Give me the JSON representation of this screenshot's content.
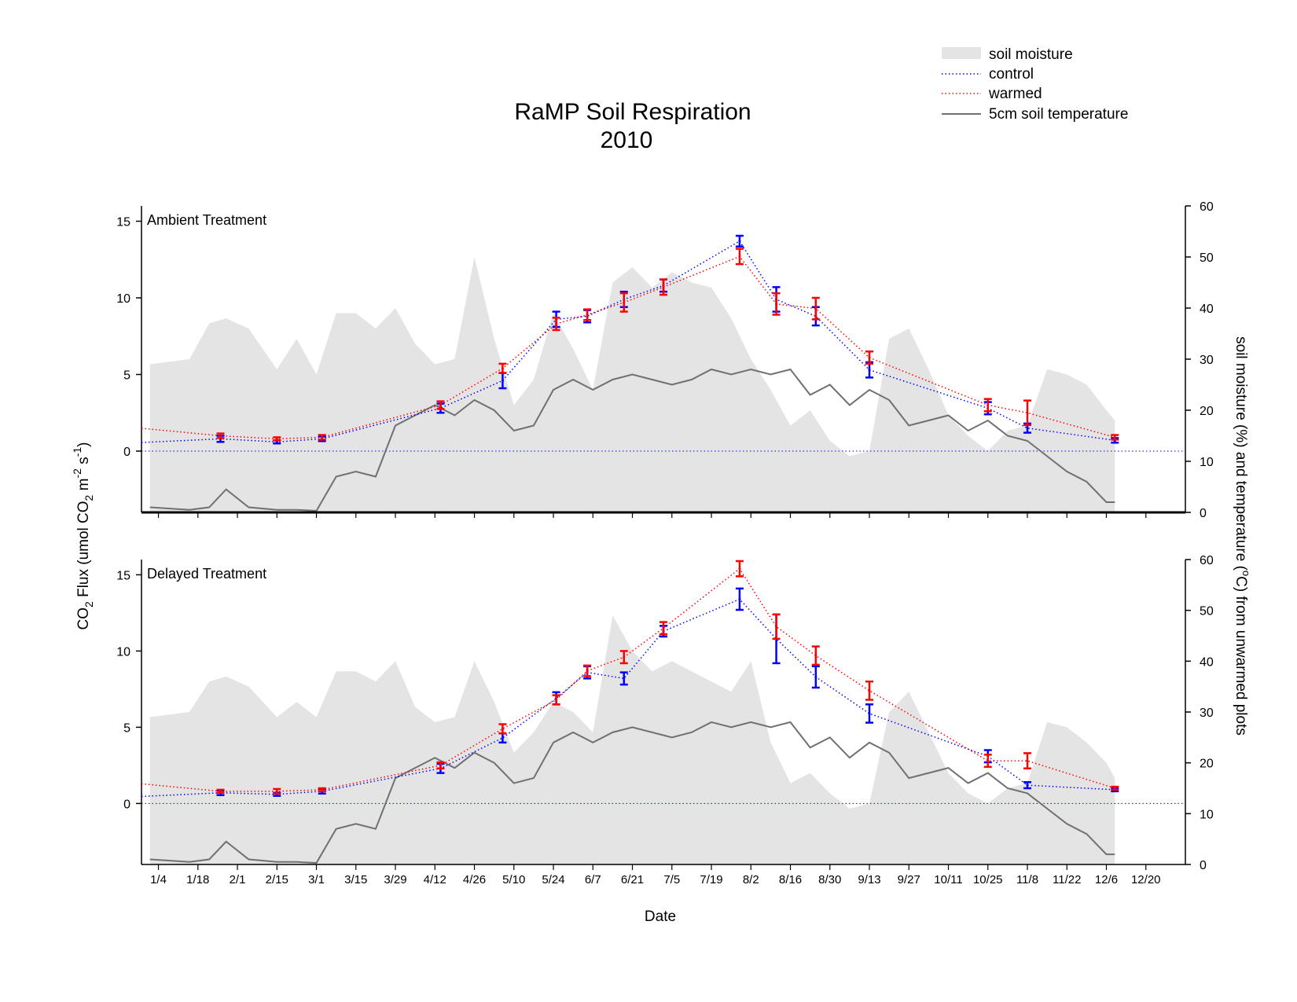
{
  "title_line1": "RaMP Soil Respiration",
  "title_line2": "2010",
  "xlabel": "Date",
  "ylabel_left": "CO2 Flux (umol CO2 m-2 s-1)",
  "ylabel_right": "soil moisture (%) and temperature (°C) from unwarmed plots",
  "legend": {
    "soil_moisture": "soil moisture",
    "control": "control",
    "warmed": "warmed",
    "temperature": "5cm soil temperature"
  },
  "colors": {
    "control": "#0000ff",
    "warmed": "#ff0000",
    "moisture": "#e4e4e4",
    "temperature": "#707070"
  },
  "chart_data": [
    {
      "type": "line",
      "panel": "Ambient Treatment",
      "title": "Ambient Treatment",
      "xlabel": "Date",
      "x_ticks": [
        "1/4",
        "1/18",
        "2/1",
        "2/15",
        "3/1",
        "3/15",
        "3/29",
        "4/12",
        "4/26",
        "5/10",
        "5/24",
        "6/7",
        "6/21",
        "7/5",
        "7/19",
        "8/2",
        "8/16",
        "8/30",
        "9/13",
        "9/27",
        "10/11",
        "10/25",
        "11/8",
        "11/22",
        "12/6",
        "12/20"
      ],
      "x_range": [
        "12/30",
        "12/30"
      ],
      "y_left": {
        "label": "CO2 Flux (umol CO2 m-2 s-1)",
        "range": [
          -4,
          16
        ],
        "ticks": [
          0,
          5,
          10,
          15
        ]
      },
      "y_right": {
        "label": "soil moisture (%) and temperature (°C)",
        "range": [
          0,
          60
        ],
        "ticks": [
          0,
          10,
          20,
          30,
          40,
          50,
          60
        ]
      },
      "series": [
        {
          "name": "control",
          "x": [
            "1/26",
            "2/15",
            "3/3",
            "4/14",
            "5/6",
            "5/25",
            "6/5",
            "6/18",
            "7/2",
            "7/29",
            "8/11",
            "8/25",
            "9/13",
            "10/25",
            "11/8",
            "12/9"
          ],
          "values": [
            0.8,
            0.6,
            0.8,
            2.8,
            4.6,
            8.6,
            8.8,
            9.9,
            10.8,
            13.7,
            9.9,
            8.8,
            5.3,
            2.8,
            1.5,
            0.7
          ],
          "error": [
            0.2,
            0.1,
            0.15,
            0.3,
            0.5,
            0.5,
            0.4,
            0.5,
            0.4,
            0.35,
            0.8,
            0.6,
            0.5,
            0.4,
            0.3,
            0.15
          ]
        },
        {
          "name": "warmed",
          "x": [
            "1/26",
            "2/15",
            "3/3",
            "4/14",
            "5/6",
            "5/25",
            "6/5",
            "6/18",
            "7/2",
            "7/29",
            "8/11",
            "8/25",
            "9/13",
            "10/25",
            "11/8",
            "12/9"
          ],
          "values": [
            1.0,
            0.8,
            0.9,
            3.0,
            5.4,
            8.3,
            8.9,
            9.7,
            10.7,
            12.7,
            9.6,
            9.3,
            6.1,
            3.0,
            2.5,
            0.9
          ],
          "error": [
            0.15,
            0.1,
            0.15,
            0.25,
            0.3,
            0.4,
            0.35,
            0.6,
            0.5,
            0.5,
            0.7,
            0.7,
            0.4,
            0.4,
            0.8,
            0.15
          ]
        },
        {
          "name": "soil moisture",
          "axis": "right",
          "unit": "%",
          "x": [
            "1/1",
            "1/15",
            "1/22",
            "1/28",
            "2/5",
            "2/15",
            "2/22",
            "3/1",
            "3/8",
            "3/15",
            "3/22",
            "3/29",
            "4/5",
            "4/12",
            "4/19",
            "4/26",
            "5/3",
            "5/10",
            "5/17",
            "5/24",
            "5/31",
            "6/7",
            "6/14",
            "6/21",
            "6/28",
            "7/5",
            "7/12",
            "7/19",
            "7/26",
            "8/2",
            "8/9",
            "8/16",
            "8/23",
            "8/30",
            "9/6",
            "9/13",
            "9/20",
            "9/27",
            "10/4",
            "10/11",
            "10/18",
            "10/25",
            "11/1",
            "11/8",
            "11/15",
            "11/22",
            "11/29",
            "12/6",
            "12/9"
          ],
          "values": [
            29,
            30,
            37,
            38,
            36,
            28,
            34,
            27,
            39,
            39,
            36,
            40,
            33,
            29,
            30,
            50,
            34,
            21,
            26,
            39,
            32,
            24,
            45,
            48,
            44,
            47,
            45,
            44,
            38,
            30,
            24,
            17,
            20,
            14,
            11,
            12,
            34,
            36,
            28,
            19,
            15,
            12,
            16,
            17,
            28,
            27,
            25,
            20,
            18
          ]
        },
        {
          "name": "5cm soil temperature",
          "axis": "right",
          "unit": "°C",
          "x": [
            "1/1",
            "1/15",
            "1/22",
            "1/28",
            "2/5",
            "2/15",
            "2/22",
            "3/1",
            "3/8",
            "3/15",
            "3/22",
            "3/29",
            "4/5",
            "4/12",
            "4/19",
            "4/26",
            "5/3",
            "5/10",
            "5/17",
            "5/24",
            "5/31",
            "6/7",
            "6/14",
            "6/21",
            "6/28",
            "7/5",
            "7/12",
            "7/19",
            "7/26",
            "8/2",
            "8/9",
            "8/16",
            "8/23",
            "8/30",
            "9/6",
            "9/13",
            "9/20",
            "9/27",
            "10/4",
            "10/11",
            "10/18",
            "10/25",
            "11/1",
            "11/8",
            "11/15",
            "11/22",
            "11/29",
            "12/6",
            "12/9"
          ],
          "values": [
            1,
            0.5,
            1,
            4.5,
            1,
            0.5,
            0.5,
            0.3,
            7,
            8,
            7,
            17,
            19,
            21,
            19,
            22,
            20,
            16,
            17,
            24,
            26,
            24,
            26,
            27,
            26,
            25,
            26,
            28,
            27,
            28,
            27,
            28,
            23,
            25,
            21,
            24,
            22,
            17,
            18,
            19,
            16,
            18,
            15,
            14,
            11,
            8,
            6,
            2,
            2
          ]
        }
      ]
    },
    {
      "type": "line",
      "panel": "Delayed Treatment",
      "title": "Delayed Treatment",
      "xlabel": "Date",
      "x_ticks": [
        "1/4",
        "1/18",
        "2/1",
        "2/15",
        "3/1",
        "3/15",
        "3/29",
        "4/12",
        "4/26",
        "5/10",
        "5/24",
        "6/7",
        "6/21",
        "7/5",
        "7/19",
        "8/2",
        "8/16",
        "8/30",
        "9/13",
        "9/27",
        "10/11",
        "10/25",
        "11/8",
        "11/22",
        "12/6",
        "12/20"
      ],
      "x_range": [
        "12/30",
        "12/30"
      ],
      "y_left": {
        "label": "CO2 Flux (umol CO2 m-2 s-1)",
        "range": [
          -4,
          16
        ],
        "ticks": [
          0,
          5,
          10,
          15
        ]
      },
      "y_right": {
        "label": "soil moisture (%) and temperature (°C)",
        "range": [
          0,
          60
        ],
        "ticks": [
          0,
          10,
          20,
          30,
          40,
          50,
          60
        ]
      },
      "series": [
        {
          "name": "control",
          "x": [
            "1/26",
            "2/15",
            "3/3",
            "4/14",
            "5/6",
            "5/25",
            "6/5",
            "6/18",
            "7/2",
            "7/29",
            "8/11",
            "8/25",
            "9/13",
            "10/25",
            "11/8",
            "12/9"
          ],
          "values": [
            0.7,
            0.6,
            0.8,
            2.3,
            4.3,
            6.9,
            8.6,
            8.2,
            11.3,
            13.4,
            10.8,
            8.3,
            5.9,
            3.1,
            1.2,
            0.9
          ],
          "error": [
            0.15,
            0.1,
            0.15,
            0.3,
            0.3,
            0.4,
            0.4,
            0.4,
            0.35,
            0.7,
            1.6,
            0.7,
            0.6,
            0.4,
            0.2,
            0.1
          ]
        },
        {
          "name": "warmed",
          "x": [
            "1/26",
            "2/15",
            "3/3",
            "4/14",
            "5/6",
            "5/25",
            "6/5",
            "6/18",
            "7/2",
            "7/29",
            "8/11",
            "8/25",
            "9/13",
            "10/25",
            "11/8",
            "12/9"
          ],
          "values": [
            0.8,
            0.8,
            0.9,
            2.5,
            4.9,
            6.8,
            8.7,
            9.6,
            11.5,
            15.4,
            11.6,
            9.7,
            7.4,
            2.8,
            2.8,
            1.0
          ],
          "error": [
            0.1,
            0.15,
            0.1,
            0.2,
            0.3,
            0.3,
            0.35,
            0.4,
            0.4,
            0.5,
            0.8,
            0.6,
            0.6,
            0.4,
            0.5,
            0.1
          ]
        },
        {
          "name": "soil moisture",
          "axis": "right",
          "unit": "%",
          "x": [
            "1/1",
            "1/15",
            "1/22",
            "1/28",
            "2/5",
            "2/15",
            "2/22",
            "3/1",
            "3/8",
            "3/15",
            "3/22",
            "3/29",
            "4/5",
            "4/12",
            "4/19",
            "4/26",
            "5/3",
            "5/10",
            "5/17",
            "5/24",
            "5/31",
            "6/7",
            "6/14",
            "6/21",
            "6/28",
            "7/5",
            "7/12",
            "7/19",
            "7/26",
            "8/2",
            "8/9",
            "8/16",
            "8/23",
            "8/30",
            "9/6",
            "9/13",
            "9/20",
            "9/27",
            "10/4",
            "10/11",
            "10/18",
            "10/25",
            "11/1",
            "11/8",
            "11/15",
            "11/22",
            "11/29",
            "12/6",
            "12/9"
          ],
          "values": [
            29,
            30,
            36,
            37,
            35,
            29,
            32,
            29,
            38,
            38,
            36,
            40,
            31,
            28,
            29,
            40,
            32,
            22,
            26,
            32,
            30,
            26,
            49,
            42,
            38,
            40,
            38,
            36,
            34,
            40,
            24,
            16,
            18,
            14,
            11,
            12,
            30,
            34,
            26,
            18,
            14,
            12,
            15,
            16,
            28,
            27,
            24,
            20,
            17
          ]
        },
        {
          "name": "5cm soil temperature",
          "axis": "right",
          "unit": "°C",
          "x": [
            "1/1",
            "1/15",
            "1/22",
            "1/28",
            "2/5",
            "2/15",
            "2/22",
            "3/1",
            "3/8",
            "3/15",
            "3/22",
            "3/29",
            "4/5",
            "4/12",
            "4/19",
            "4/26",
            "5/3",
            "5/10",
            "5/17",
            "5/24",
            "5/31",
            "6/7",
            "6/14",
            "6/21",
            "6/28",
            "7/5",
            "7/12",
            "7/19",
            "7/26",
            "8/2",
            "8/9",
            "8/16",
            "8/23",
            "8/30",
            "9/6",
            "9/13",
            "9/20",
            "9/27",
            "10/4",
            "10/11",
            "10/18",
            "10/25",
            "11/1",
            "11/8",
            "11/15",
            "11/22",
            "11/29",
            "12/6",
            "12/9"
          ],
          "values": [
            1,
            0.5,
            1,
            4.5,
            1,
            0.5,
            0.5,
            0.3,
            7,
            8,
            7,
            17,
            19,
            21,
            19,
            22,
            20,
            16,
            17,
            24,
            26,
            24,
            26,
            27,
            26,
            25,
            26,
            28,
            27,
            28,
            27,
            28,
            23,
            25,
            21,
            24,
            22,
            17,
            18,
            19,
            16,
            18,
            15,
            14,
            11,
            8,
            6,
            2,
            2
          ]
        }
      ]
    }
  ]
}
